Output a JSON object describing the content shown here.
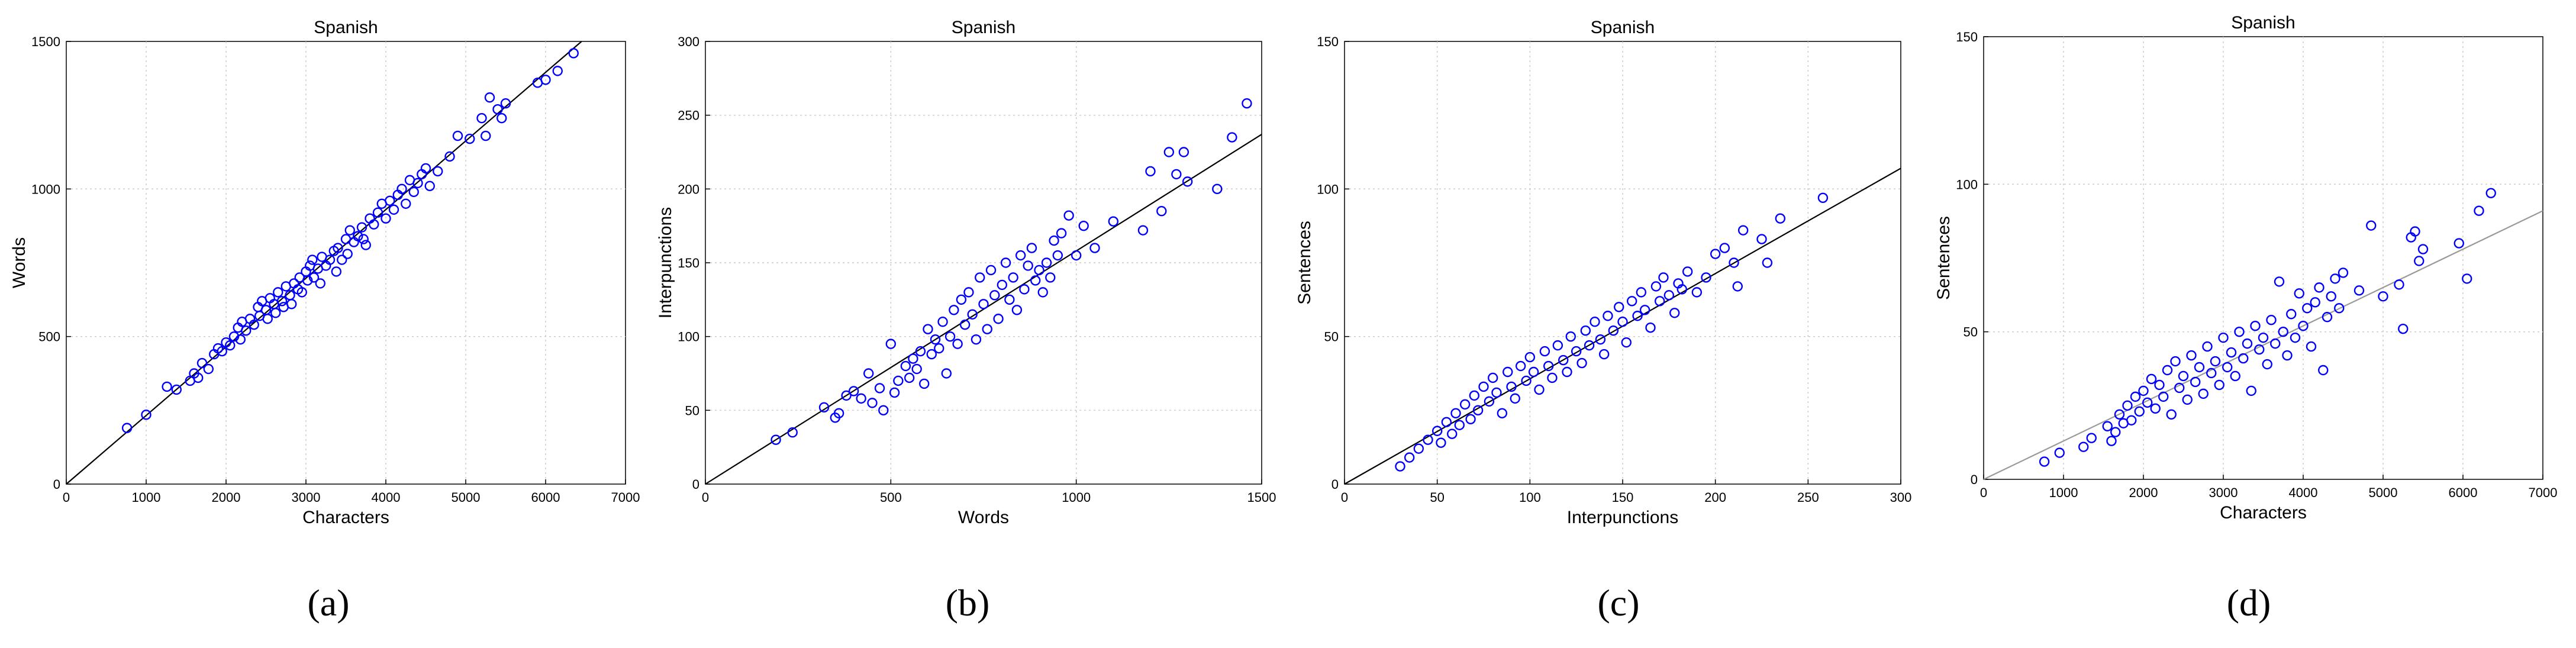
{
  "chart_data": [
    {
      "type": "scatter",
      "title": "Spanish",
      "xlabel": "Characters",
      "ylabel": "Words",
      "caption": "(a)",
      "xlim": [
        0,
        7000
      ],
      "ylim": [
        0,
        1500
      ],
      "xticks": [
        0,
        1000,
        2000,
        3000,
        4000,
        5000,
        6000,
        7000
      ],
      "yticks": [
        0,
        500,
        1000,
        1500
      ],
      "grid": true,
      "marker_color": "#0000ff",
      "line_color": "#000000",
      "fit_line": [
        [
          0,
          0
        ],
        [
          6450,
          1500
        ]
      ],
      "points": [
        [
          760,
          190
        ],
        [
          1000,
          235
        ],
        [
          1260,
          330
        ],
        [
          1380,
          320
        ],
        [
          1550,
          350
        ],
        [
          1600,
          375
        ],
        [
          1650,
          360
        ],
        [
          1700,
          410
        ],
        [
          1780,
          390
        ],
        [
          1850,
          440
        ],
        [
          1900,
          460
        ],
        [
          1950,
          450
        ],
        [
          2000,
          480
        ],
        [
          2050,
          470
        ],
        [
          2100,
          500
        ],
        [
          2150,
          530
        ],
        [
          2180,
          490
        ],
        [
          2200,
          550
        ],
        [
          2250,
          520
        ],
        [
          2300,
          560
        ],
        [
          2350,
          540
        ],
        [
          2400,
          600
        ],
        [
          2420,
          570
        ],
        [
          2450,
          620
        ],
        [
          2500,
          590
        ],
        [
          2520,
          560
        ],
        [
          2550,
          630
        ],
        [
          2600,
          610
        ],
        [
          2620,
          580
        ],
        [
          2650,
          650
        ],
        [
          2700,
          620
        ],
        [
          2720,
          600
        ],
        [
          2750,
          670
        ],
        [
          2800,
          640
        ],
        [
          2820,
          610
        ],
        [
          2850,
          680
        ],
        [
          2900,
          660
        ],
        [
          2920,
          700
        ],
        [
          2950,
          650
        ],
        [
          3000,
          720
        ],
        [
          3020,
          690
        ],
        [
          3050,
          740
        ],
        [
          3080,
          760
        ],
        [
          3100,
          700
        ],
        [
          3150,
          730
        ],
        [
          3180,
          680
        ],
        [
          3200,
          770
        ],
        [
          3250,
          740
        ],
        [
          3300,
          760
        ],
        [
          3350,
          790
        ],
        [
          3380,
          720
        ],
        [
          3400,
          800
        ],
        [
          3450,
          760
        ],
        [
          3500,
          830
        ],
        [
          3520,
          780
        ],
        [
          3550,
          860
        ],
        [
          3600,
          820
        ],
        [
          3650,
          840
        ],
        [
          3700,
          870
        ],
        [
          3720,
          830
        ],
        [
          3750,
          810
        ],
        [
          3800,
          900
        ],
        [
          3850,
          880
        ],
        [
          3900,
          920
        ],
        [
          3950,
          950
        ],
        [
          4000,
          900
        ],
        [
          4050,
          960
        ],
        [
          4100,
          930
        ],
        [
          4150,
          980
        ],
        [
          4200,
          1000
        ],
        [
          4250,
          950
        ],
        [
          4300,
          1030
        ],
        [
          4350,
          990
        ],
        [
          4400,
          1020
        ],
        [
          4450,
          1050
        ],
        [
          4500,
          1070
        ],
        [
          4550,
          1010
        ],
        [
          4650,
          1060
        ],
        [
          4800,
          1110
        ],
        [
          4900,
          1180
        ],
        [
          5050,
          1170
        ],
        [
          5200,
          1240
        ],
        [
          5250,
          1180
        ],
        [
          5300,
          1310
        ],
        [
          5400,
          1270
        ],
        [
          5450,
          1240
        ],
        [
          5500,
          1290
        ],
        [
          5900,
          1360
        ],
        [
          6000,
          1370
        ],
        [
          6150,
          1400
        ],
        [
          6350,
          1460
        ]
      ]
    },
    {
      "type": "scatter",
      "title": "Spanish",
      "xlabel": "Words",
      "ylabel": "Interpunctions",
      "caption": "(b)",
      "xlim": [
        0,
        1500
      ],
      "ylim": [
        0,
        300
      ],
      "xticks": [
        0,
        500,
        1000,
        1500
      ],
      "yticks": [
        0,
        50,
        100,
        150,
        200,
        250,
        300
      ],
      "grid": true,
      "marker_color": "#0000ff",
      "line_color": "#000000",
      "fit_line": [
        [
          0,
          0
        ],
        [
          1500,
          237
        ]
      ],
      "points": [
        [
          190,
          30
        ],
        [
          235,
          35
        ],
        [
          320,
          52
        ],
        [
          350,
          45
        ],
        [
          360,
          48
        ],
        [
          380,
          60
        ],
        [
          400,
          63
        ],
        [
          420,
          58
        ],
        [
          440,
          75
        ],
        [
          450,
          55
        ],
        [
          470,
          65
        ],
        [
          480,
          50
        ],
        [
          500,
          95
        ],
        [
          510,
          62
        ],
        [
          520,
          70
        ],
        [
          540,
          80
        ],
        [
          550,
          72
        ],
        [
          560,
          85
        ],
        [
          570,
          78
        ],
        [
          580,
          90
        ],
        [
          590,
          68
        ],
        [
          600,
          105
        ],
        [
          610,
          88
        ],
        [
          620,
          98
        ],
        [
          630,
          92
        ],
        [
          640,
          110
        ],
        [
          650,
          75
        ],
        [
          660,
          100
        ],
        [
          670,
          118
        ],
        [
          680,
          95
        ],
        [
          690,
          125
        ],
        [
          700,
          108
        ],
        [
          710,
          130
        ],
        [
          720,
          115
        ],
        [
          730,
          98
        ],
        [
          740,
          140
        ],
        [
          750,
          122
        ],
        [
          760,
          105
        ],
        [
          770,
          145
        ],
        [
          780,
          128
        ],
        [
          790,
          112
        ],
        [
          800,
          135
        ],
        [
          810,
          150
        ],
        [
          820,
          125
        ],
        [
          830,
          140
        ],
        [
          840,
          118
        ],
        [
          850,
          155
        ],
        [
          860,
          132
        ],
        [
          870,
          148
        ],
        [
          880,
          160
        ],
        [
          890,
          138
        ],
        [
          900,
          145
        ],
        [
          910,
          130
        ],
        [
          920,
          150
        ],
        [
          930,
          140
        ],
        [
          940,
          165
        ],
        [
          950,
          155
        ],
        [
          960,
          170
        ],
        [
          980,
          182
        ],
        [
          1000,
          155
        ],
        [
          1020,
          175
        ],
        [
          1050,
          160
        ],
        [
          1100,
          178
        ],
        [
          1180,
          172
        ],
        [
          1200,
          212
        ],
        [
          1230,
          185
        ],
        [
          1250,
          225
        ],
        [
          1270,
          210
        ],
        [
          1290,
          225
        ],
        [
          1300,
          205
        ],
        [
          1380,
          200
        ],
        [
          1420,
          235
        ],
        [
          1460,
          258
        ]
      ]
    },
    {
      "type": "scatter",
      "title": "Spanish",
      "xlabel": "Interpunctions",
      "ylabel": "Sentences",
      "caption": "(c)",
      "xlim": [
        0,
        300
      ],
      "ylim": [
        0,
        150
      ],
      "xticks": [
        0,
        50,
        100,
        150,
        200,
        250,
        300
      ],
      "yticks": [
        0,
        50,
        100,
        150
      ],
      "grid": true,
      "marker_color": "#0000ff",
      "line_color": "#000000",
      "fit_line": [
        [
          0,
          0
        ],
        [
          300,
          107
        ]
      ],
      "points": [
        [
          30,
          6
        ],
        [
          35,
          9
        ],
        [
          40,
          12
        ],
        [
          45,
          15
        ],
        [
          50,
          18
        ],
        [
          52,
          14
        ],
        [
          55,
          21
        ],
        [
          58,
          17
        ],
        [
          60,
          24
        ],
        [
          62,
          20
        ],
        [
          65,
          27
        ],
        [
          68,
          22
        ],
        [
          70,
          30
        ],
        [
          72,
          25
        ],
        [
          75,
          33
        ],
        [
          78,
          28
        ],
        [
          80,
          36
        ],
        [
          82,
          31
        ],
        [
          85,
          24
        ],
        [
          88,
          38
        ],
        [
          90,
          33
        ],
        [
          92,
          29
        ],
        [
          95,
          40
        ],
        [
          98,
          35
        ],
        [
          100,
          43
        ],
        [
          102,
          38
        ],
        [
          105,
          32
        ],
        [
          108,
          45
        ],
        [
          110,
          40
        ],
        [
          112,
          36
        ],
        [
          115,
          47
        ],
        [
          118,
          42
        ],
        [
          120,
          38
        ],
        [
          122,
          50
        ],
        [
          125,
          45
        ],
        [
          128,
          41
        ],
        [
          130,
          52
        ],
        [
          132,
          47
        ],
        [
          135,
          55
        ],
        [
          138,
          49
        ],
        [
          140,
          44
        ],
        [
          142,
          57
        ],
        [
          145,
          52
        ],
        [
          148,
          60
        ],
        [
          150,
          55
        ],
        [
          152,
          48
        ],
        [
          155,
          62
        ],
        [
          158,
          57
        ],
        [
          160,
          65
        ],
        [
          162,
          59
        ],
        [
          165,
          53
        ],
        [
          168,
          67
        ],
        [
          170,
          62
        ],
        [
          172,
          70
        ],
        [
          175,
          64
        ],
        [
          178,
          58
        ],
        [
          180,
          68
        ],
        [
          182,
          66
        ],
        [
          185,
          72
        ],
        [
          190,
          65
        ],
        [
          195,
          70
        ],
        [
          200,
          78
        ],
        [
          205,
          80
        ],
        [
          210,
          75
        ],
        [
          212,
          67
        ],
        [
          215,
          86
        ],
        [
          225,
          83
        ],
        [
          228,
          75
        ],
        [
          235,
          90
        ],
        [
          258,
          97
        ]
      ]
    },
    {
      "type": "scatter",
      "title": "Spanish",
      "xlabel": "Characters",
      "ylabel": "Sentences",
      "caption": "(d)",
      "xlim": [
        0,
        7000
      ],
      "ylim": [
        0,
        150
      ],
      "xticks": [
        0,
        1000,
        2000,
        3000,
        4000,
        5000,
        6000,
        7000
      ],
      "yticks": [
        0,
        50,
        100,
        150
      ],
      "grid": true,
      "marker_color": "#0000ff",
      "line_color": "#999999",
      "fit_line": [
        [
          0,
          0
        ],
        [
          7000,
          91
        ]
      ],
      "points": [
        [
          760,
          6
        ],
        [
          950,
          9
        ],
        [
          1250,
          11
        ],
        [
          1350,
          14
        ],
        [
          1550,
          18
        ],
        [
          1600,
          13
        ],
        [
          1650,
          16
        ],
        [
          1700,
          22
        ],
        [
          1750,
          19
        ],
        [
          1800,
          25
        ],
        [
          1850,
          20
        ],
        [
          1900,
          28
        ],
        [
          1950,
          23
        ],
        [
          2000,
          30
        ],
        [
          2050,
          26
        ],
        [
          2100,
          34
        ],
        [
          2150,
          24
        ],
        [
          2200,
          32
        ],
        [
          2250,
          28
        ],
        [
          2300,
          37
        ],
        [
          2350,
          22
        ],
        [
          2400,
          40
        ],
        [
          2450,
          31
        ],
        [
          2500,
          35
        ],
        [
          2550,
          27
        ],
        [
          2600,
          42
        ],
        [
          2650,
          33
        ],
        [
          2700,
          38
        ],
        [
          2750,
          29
        ],
        [
          2800,
          45
        ],
        [
          2850,
          36
        ],
        [
          2900,
          40
        ],
        [
          2950,
          32
        ],
        [
          3000,
          48
        ],
        [
          3050,
          38
        ],
        [
          3100,
          43
        ],
        [
          3150,
          35
        ],
        [
          3200,
          50
        ],
        [
          3250,
          41
        ],
        [
          3300,
          46
        ],
        [
          3350,
          30
        ],
        [
          3400,
          52
        ],
        [
          3450,
          44
        ],
        [
          3500,
          48
        ],
        [
          3550,
          39
        ],
        [
          3600,
          54
        ],
        [
          3650,
          46
        ],
        [
          3700,
          67
        ],
        [
          3750,
          50
        ],
        [
          3800,
          42
        ],
        [
          3850,
          56
        ],
        [
          3900,
          48
        ],
        [
          3950,
          63
        ],
        [
          4000,
          52
        ],
        [
          4050,
          58
        ],
        [
          4100,
          45
        ],
        [
          4150,
          60
        ],
        [
          4200,
          65
        ],
        [
          4250,
          37
        ],
        [
          4300,
          55
        ],
        [
          4350,
          62
        ],
        [
          4400,
          68
        ],
        [
          4450,
          58
        ],
        [
          4500,
          70
        ],
        [
          4700,
          64
        ],
        [
          4850,
          86
        ],
        [
          5000,
          62
        ],
        [
          5200,
          66
        ],
        [
          5250,
          51
        ],
        [
          5350,
          82
        ],
        [
          5400,
          84
        ],
        [
          5450,
          74
        ],
        [
          5500,
          78
        ],
        [
          5950,
          80
        ],
        [
          6050,
          68
        ],
        [
          6200,
          91
        ],
        [
          6350,
          97
        ]
      ]
    }
  ]
}
